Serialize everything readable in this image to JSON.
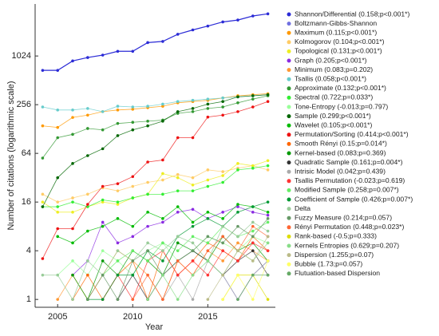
{
  "chart_data": {
    "type": "line",
    "x_label": "Year",
    "y_label": "Number of citations (logarithmic scale)",
    "x": [
      2004,
      2005,
      2006,
      2007,
      2008,
      2009,
      2010,
      2011,
      2012,
      2013,
      2014,
      2015,
      2016,
      2017,
      2018,
      2019
    ],
    "xlim": [
      2003.5,
      2019.5
    ],
    "xticks": [
      2005,
      2010,
      2015
    ],
    "ylim": [
      0.8,
      4500
    ],
    "yticks": [
      1,
      4,
      16,
      64,
      256,
      1024
    ],
    "yscale": "log",
    "legend": "right",
    "series": [
      {
        "name": "Shannon/Differential (0.158;p<0.001*)",
        "color": "#2b2bd6",
        "values": [
          680,
          680,
          890,
          980,
          1050,
          1170,
          1170,
          1500,
          1550,
          1900,
          2150,
          2400,
          2700,
          2850,
          3200,
          3400
        ]
      },
      {
        "name": "Boltzmann-Gibbs-Shannon",
        "color": "#7070e0",
        "values": [
          null,
          null,
          null,
          null,
          null,
          null,
          null,
          null,
          null,
          null,
          null,
          null,
          2,
          1,
          2,
          3
        ]
      },
      {
        "name": "Maximum (0.115;p<0.001*)",
        "color": "#ff9900",
        "values": [
          140,
          134,
          178,
          190,
          210,
          220,
          225,
          235,
          245,
          270,
          280,
          290,
          310,
          330,
          340,
          350
        ]
      },
      {
        "name": "Kolmogorov (0.104;p<0.001*)",
        "color": "#ffcc66",
        "values": [
          20,
          16,
          18,
          20,
          24,
          22,
          25,
          28,
          30,
          35,
          32,
          40,
          38,
          42,
          45,
          40
        ]
      },
      {
        "name": "Topological (0.131;p<0.001*)",
        "color": "#eeee22",
        "values": [
          16,
          12,
          12,
          14,
          16,
          15,
          18,
          20,
          36,
          32,
          26,
          30,
          34,
          48,
          45,
          52
        ]
      },
      {
        "name": "Graph (0.205;p<0.001*)",
        "color": "#8a2be2",
        "values": [
          null,
          null,
          2,
          3,
          9,
          5,
          6,
          8,
          9,
          12,
          13,
          10,
          12,
          14,
          12,
          11
        ]
      },
      {
        "name": "Minimum (0.083;p=0.202)",
        "color": "#ff9933",
        "values": [
          null,
          1,
          2,
          1,
          2,
          4,
          3,
          2,
          1,
          3,
          2,
          4,
          3,
          5,
          4,
          3
        ]
      },
      {
        "name": "Tsallis (0.058;p<0.001*)",
        "color": "#66cccc",
        "values": [
          240,
          220,
          220,
          230,
          210,
          245,
          240,
          245,
          260,
          280,
          290,
          300,
          310,
          320,
          330,
          340
        ]
      },
      {
        "name": "Approximate (0.132;p<0.001*)",
        "color": "#339933",
        "values": [
          56,
          100,
          110,
          130,
          125,
          150,
          155,
          160,
          165,
          200,
          210,
          230,
          240,
          270,
          300,
          330
        ]
      },
      {
        "name": "Spectral (0.722;p=0.033*)",
        "color": "#33ee33",
        "values": [
          14,
          14,
          16,
          14,
          17,
          16,
          18,
          20,
          20,
          22,
          22,
          25,
          28,
          40,
          42,
          45
        ]
      },
      {
        "name": "Tone-Entropy (-0.013;p=0.797)",
        "color": "#99ff99",
        "values": [
          null,
          2,
          3,
          2,
          4,
          3,
          2,
          4,
          5,
          3,
          4,
          6,
          5,
          4,
          6,
          5
        ]
      },
      {
        "name": "Sample (0.299;p<0.001*)",
        "color": "#006600",
        "values": [
          14,
          32,
          48,
          60,
          73,
          106,
          125,
          140,
          160,
          210,
          230,
          260,
          280,
          320,
          330,
          340
        ]
      },
      {
        "name": "Wavelet (0.105;p<0.001*)",
        "color": "#00bb00",
        "values": [
          null,
          6,
          5,
          7,
          8,
          10,
          8,
          12,
          10,
          14,
          9,
          12,
          10,
          15,
          14,
          12
        ]
      },
      {
        "name": "Permutation/Sorting (0.414;p<0.001*)",
        "color": "#ee1111",
        "values": [
          3.2,
          7.5,
          7.5,
          15,
          25,
          27,
          33,
          50,
          53,
          100,
          100,
          180,
          190,
          210,
          240,
          280
        ]
      },
      {
        "name": "Smooth Rényi (0.15;p=0.014*)",
        "color": "#ff6600",
        "values": [
          null,
          null,
          1,
          2,
          1,
          2,
          3,
          1,
          4,
          2,
          3,
          5,
          4,
          3,
          6,
          4
        ]
      },
      {
        "name": "Kernel-based (0.083;p=0.369)",
        "color": "#009900",
        "values": [
          null,
          null,
          2,
          1,
          3,
          2,
          4,
          3,
          2,
          5,
          4,
          3,
          6,
          4,
          5,
          3
        ]
      },
      {
        "name": "Quadratic Sample (0.161;p=0.004*)",
        "color": "#333333",
        "values": [
          null,
          null,
          null,
          null,
          null,
          1,
          2,
          1,
          2,
          3,
          4,
          3,
          2,
          3,
          4,
          2
        ]
      },
      {
        "name": "Intrisic Model (0.042;p=0.439)",
        "color": "#aaaaaa",
        "values": [
          null,
          null,
          null,
          null,
          null,
          null,
          null,
          null,
          1,
          2,
          1,
          3,
          2,
          1,
          2,
          3
        ]
      },
      {
        "name": "Tsallis Permutation (-0.023;p=0.619)",
        "color": "#ff3333",
        "values": [
          null,
          null,
          null,
          null,
          1,
          2,
          1,
          3,
          4,
          2,
          3,
          2,
          4,
          3,
          5,
          4
        ]
      },
      {
        "name": "Modified Sample (0.258;p=0.007*)",
        "color": "#66ee66",
        "values": [
          null,
          null,
          null,
          null,
          2,
          3,
          4,
          3,
          5,
          4,
          6,
          5,
          8,
          6,
          7,
          9
        ]
      },
      {
        "name": "Coefficient of Sample (0.426;p=0.007*)",
        "color": "#009933",
        "values": [
          null,
          null,
          null,
          1,
          1,
          2,
          2,
          4,
          3,
          6,
          8,
          10,
          8,
          12,
          14,
          16
        ]
      },
      {
        "name": "Delta",
        "color": "#99cc99",
        "values": [
          2,
          2,
          1,
          3,
          2,
          4,
          3,
          5,
          4,
          6,
          5,
          3,
          8,
          6,
          9,
          7
        ]
      },
      {
        "name": "Fuzzy Measure (0.214;p=0.057)",
        "color": "#669966",
        "values": [
          null,
          null,
          null,
          1,
          2,
          1,
          3,
          4,
          2,
          3,
          4,
          6,
          5,
          8,
          6,
          10
        ]
      },
      {
        "name": "Rényi Permutation (0.448;p=0.023*)",
        "color": "#ff6633",
        "values": [
          null,
          null,
          null,
          null,
          null,
          null,
          1,
          2,
          1,
          3,
          2,
          4,
          6,
          4,
          8,
          6
        ]
      },
      {
        "name": "Rank-based (-0.5;p=0.333)",
        "color": "#dddd00",
        "values": [
          null,
          null,
          null,
          null,
          null,
          null,
          null,
          null,
          null,
          null,
          null,
          null,
          1,
          2,
          2,
          1
        ]
      },
      {
        "name": "Kernels Entropies (0.629;p=0.207)",
        "color": "#88dd88",
        "values": [
          null,
          null,
          null,
          null,
          null,
          null,
          null,
          1,
          2,
          1,
          2,
          3,
          2,
          4,
          3,
          5
        ]
      },
      {
        "name": "Dispersion (1.255;p=0.07)",
        "color": "#bbbb88",
        "values": [
          null,
          null,
          null,
          null,
          null,
          null,
          null,
          null,
          null,
          null,
          null,
          1,
          2,
          4,
          3,
          6
        ]
      },
      {
        "name": "Bubble (1.73;p=0.057)",
        "color": "#ffff66",
        "values": [
          null,
          null,
          null,
          null,
          null,
          null,
          null,
          null,
          null,
          null,
          null,
          null,
          1,
          2,
          1,
          3
        ]
      },
      {
        "name": "Flutuation-based Dispersion",
        "color": "#66aa66",
        "values": [
          null,
          null,
          null,
          null,
          null,
          null,
          null,
          null,
          null,
          null,
          null,
          null,
          null,
          1,
          2,
          2
        ]
      }
    ]
  }
}
